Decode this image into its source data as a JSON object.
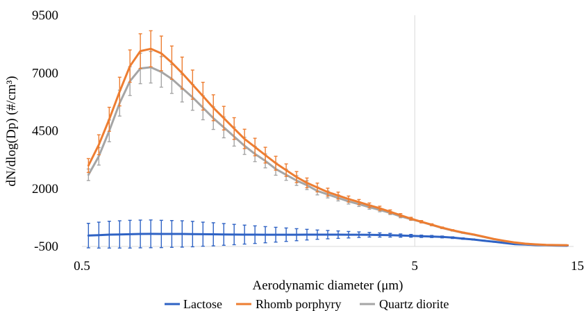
{
  "chart_data": {
    "type": "line",
    "title": "",
    "xlabel": "Aerodynamic diameter (μm)",
    "ylabel": "dN/dlog(Dp) (#/cm³)",
    "xscale": "log",
    "xlim": [
      0.5,
      15
    ],
    "ylim": [
      -500,
      9500
    ],
    "x_ticks": [
      0.5,
      5,
      15
    ],
    "y_ticks": [
      -500,
      2000,
      4500,
      7000,
      9500
    ],
    "x_tick_labels": [
      "0.5",
      "5",
      "15"
    ],
    "y_tick_labels": [
      "-500",
      "2000",
      "4500",
      "7000",
      "9500"
    ],
    "grid": "vertical gridline at x = 5",
    "legend_position": "bottom",
    "x": [
      0.523,
      0.562,
      0.604,
      0.649,
      0.697,
      0.749,
      0.805,
      0.866,
      0.931,
      1.0,
      1.075,
      1.155,
      1.241,
      1.334,
      1.433,
      1.54,
      1.655,
      1.778,
      1.911,
      2.054,
      2.207,
      2.371,
      2.548,
      2.738,
      2.943,
      3.162,
      3.398,
      3.652,
      3.924,
      4.217,
      4.532,
      4.87,
      5.233,
      5.623,
      6.043,
      6.494,
      6.978,
      7.499,
      8.058,
      8.66,
      9.306,
      10.0,
      10.746,
      11.548,
      12.409,
      13.335,
      14.33
    ],
    "series": [
      {
        "name": "Lactose",
        "color": "#2E62C4",
        "values": [
          -30,
          -10,
          10,
          20,
          30,
          40,
          45,
          40,
          40,
          40,
          35,
          30,
          25,
          20,
          15,
          12,
          10,
          8,
          8,
          8,
          8,
          10,
          10,
          10,
          10,
          8,
          8,
          6,
          -5,
          -15,
          -30,
          -40,
          -60,
          -70,
          -90,
          -120,
          -160,
          -200,
          -250,
          -300,
          -350,
          -400,
          -420,
          -440,
          -450,
          -460,
          -470
        ],
        "errors": [
          530,
          560,
          580,
          590,
          600,
          600,
          600,
          590,
          580,
          570,
          550,
          520,
          500,
          470,
          440,
          410,
          380,
          350,
          320,
          290,
          260,
          230,
          200,
          180,
          160,
          140,
          120,
          100,
          90,
          80,
          70,
          60,
          50,
          45,
          40,
          35,
          30,
          25,
          20,
          18,
          15,
          12,
          10,
          8,
          6,
          5,
          5
        ]
      },
      {
        "name": "Rhomb porphyry",
        "color": "#ED7D31",
        "values": [
          3000,
          3900,
          5000,
          6200,
          7300,
          7950,
          8050,
          7850,
          7450,
          7000,
          6500,
          6000,
          5500,
          5050,
          4600,
          4150,
          3800,
          3450,
          3100,
          2800,
          2500,
          2250,
          2050,
          1850,
          1700,
          1550,
          1420,
          1280,
          1150,
          1000,
          850,
          700,
          570,
          440,
          310,
          200,
          100,
          20,
          -80,
          -180,
          -260,
          -330,
          -380,
          -410,
          -430,
          -440,
          -445
        ],
        "errors": [
          300,
          430,
          520,
          620,
          700,
          750,
          780,
          750,
          720,
          690,
          630,
          600,
          560,
          510,
          470,
          420,
          380,
          340,
          300,
          270,
          240,
          210,
          190,
          170,
          150,
          130,
          110,
          100,
          90,
          80,
          70,
          60,
          50,
          40,
          30,
          25,
          20,
          15,
          10,
          10,
          10,
          10,
          10,
          10,
          10,
          10,
          10
        ]
      },
      {
        "name": "Quartz diorite",
        "color": "#A5A5A5",
        "values": [
          2600,
          3400,
          4500,
          5700,
          6650,
          7200,
          7250,
          7050,
          6750,
          6350,
          5950,
          5500,
          5050,
          4650,
          4250,
          3850,
          3500,
          3200,
          2850,
          2600,
          2350,
          2150,
          1900,
          1750,
          1600,
          1450,
          1330,
          1200,
          1080,
          950,
          800,
          680,
          560,
          430,
          300,
          190,
          90,
          10,
          -90,
          -190,
          -270,
          -340,
          -390,
          -420,
          -440,
          -450,
          -450
        ],
        "errors": [
          250,
          380,
          470,
          560,
          620,
          660,
          680,
          660,
          630,
          600,
          560,
          520,
          490,
          450,
          410,
          370,
          330,
          300,
          270,
          240,
          210,
          190,
          170,
          150,
          130,
          115,
          100,
          90,
          80,
          70,
          60,
          50,
          40,
          35,
          30,
          25,
          20,
          15,
          10,
          10,
          10,
          10,
          10,
          10,
          10,
          10,
          10
        ]
      }
    ]
  }
}
